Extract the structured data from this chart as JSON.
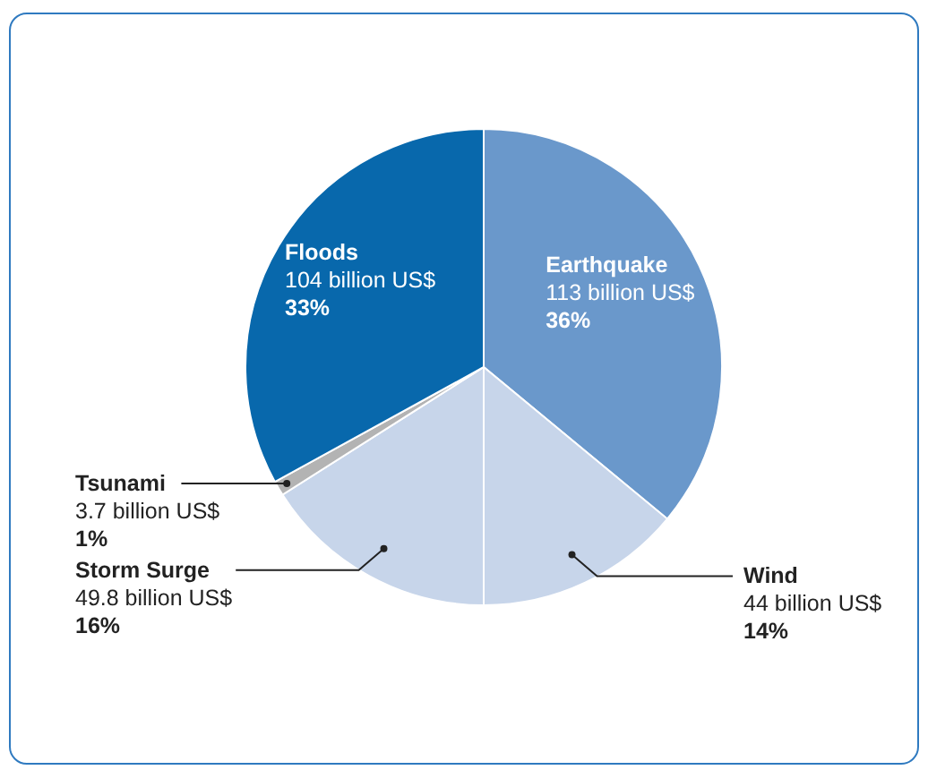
{
  "chart_data": {
    "type": "pie",
    "categories": [
      "Earthquake",
      "Wind",
      "Storm Surge",
      "Tsunami",
      "Floods"
    ],
    "values": [
      36,
      14,
      16,
      1,
      33
    ],
    "colors": [
      "#6a98cb",
      "#c7d5ea",
      "#c7d5ea",
      "#b3b3b3",
      "#0868ac"
    ],
    "value_labels": [
      "113 billion US$\n36%",
      "44 billion US$\n14%",
      "49.8 billion US$\n16%",
      "3.7 billion US$\n1%",
      "104 billion US$\n33%"
    ]
  }
}
